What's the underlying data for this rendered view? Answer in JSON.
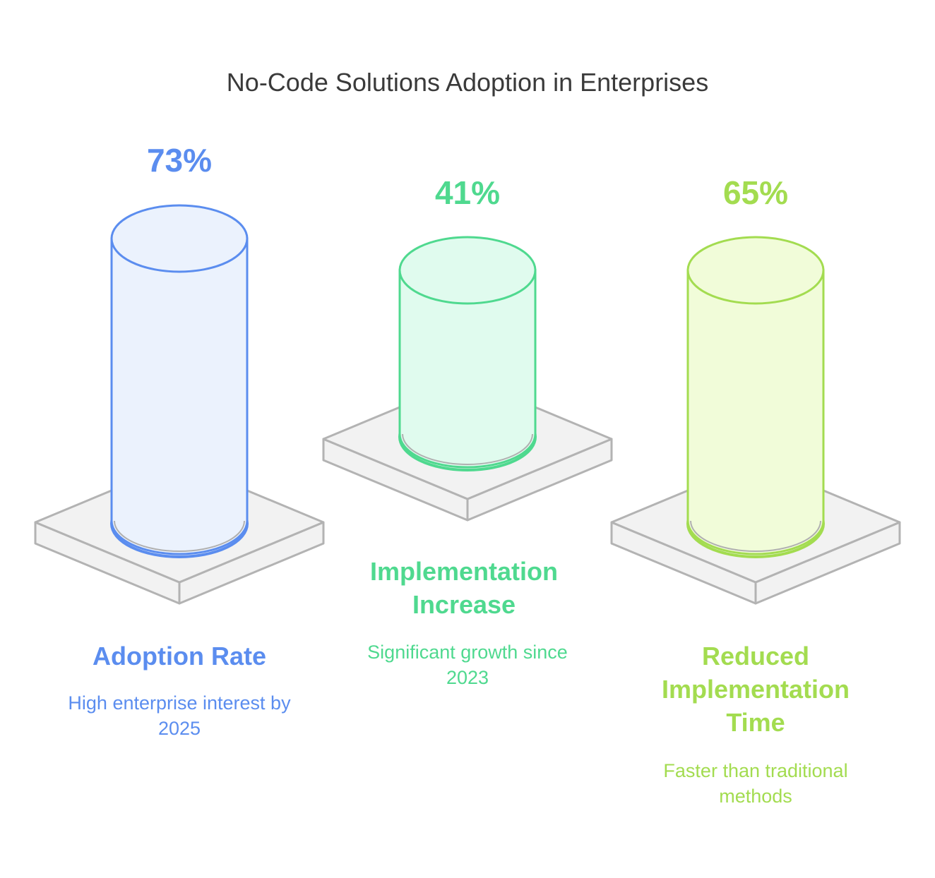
{
  "title": "No-Code Solutions Adoption in Enterprises",
  "colors": {
    "base_fill": "#f2f2f2",
    "base_stroke": "#b3b3b3"
  },
  "pillars": [
    {
      "value": "73%",
      "label": "Adoption Rate",
      "description": "High enterprise interest by 2025",
      "stroke": "#5b8def",
      "fill": "#ebf2fd",
      "text_color": "#5b8def"
    },
    {
      "value": "41%",
      "label": "Implementation Increase",
      "description": "Significant growth since 2023",
      "stroke": "#4fd98f",
      "fill": "#e0fbee",
      "text_color": "#4fd98f"
    },
    {
      "value": "65%",
      "label": "Reduced Implementation Time",
      "description": "Faster than traditional methods",
      "stroke": "#a3dc50",
      "fill": "#f1fcd9",
      "text_color": "#a3dc50"
    }
  ]
}
